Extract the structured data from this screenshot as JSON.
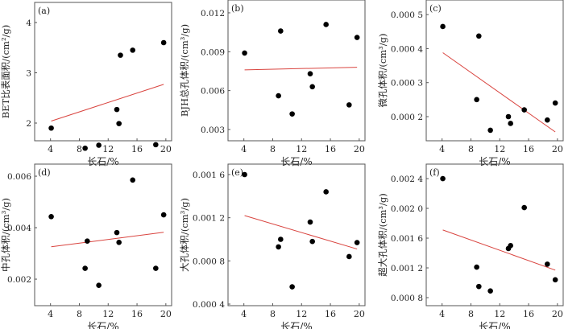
{
  "chart_data": [
    {
      "type": "scatter",
      "panel": "(a)",
      "xlabel": "长石/%",
      "ylabel": "BET比表面积/(cm²/g)",
      "xlim": [
        1.8,
        20.8
      ],
      "ylim": [
        1.648,
        4.4
      ],
      "xticks": [
        4,
        8,
        12,
        16,
        20
      ],
      "xtick_labels": [
        "4",
        "8",
        "12",
        "16",
        "20"
      ],
      "yticks": [
        2,
        3,
        4
      ],
      "ytick_labels": [
        "2",
        "3",
        "4"
      ],
      "x": [
        4.1,
        8.8,
        10.7,
        13.2,
        13.5,
        13.7,
        15.4,
        18.6,
        19.7
      ],
      "y": [
        1.9,
        1.5,
        1.56,
        2.27,
        1.99,
        3.35,
        3.45,
        1.57,
        3.6
      ],
      "fit": {
        "x": [
          4.1,
          19.7
        ],
        "y": [
          2.04,
          2.77
        ]
      }
    },
    {
      "type": "scatter",
      "panel": "(b)",
      "xlabel": "长石/%",
      "ylabel": "BJH总孔体积/(cm³/g)",
      "xlim": [
        1.8,
        20.8
      ],
      "ylim": [
        0.00213,
        0.01299
      ],
      "xticks": [
        4,
        8,
        12,
        16,
        20
      ],
      "xtick_labels": [
        "4",
        "8",
        "12",
        "16",
        "20"
      ],
      "yticks": [
        0.003,
        0.006,
        0.009,
        0.012
      ],
      "ytick_labels": [
        "0.003",
        "0.006",
        "0.009",
        "0.012"
      ],
      "x": [
        4.1,
        8.8,
        9.1,
        10.7,
        13.2,
        13.5,
        15.4,
        18.6,
        19.7
      ],
      "y": [
        0.0089,
        0.0056,
        0.0106,
        0.0042,
        0.0073,
        0.0063,
        0.0111,
        0.0049,
        0.0101
      ],
      "fit": {
        "x": [
          4.1,
          19.7
        ],
        "y": [
          0.0076,
          0.0078
        ]
      }
    },
    {
      "type": "scatter",
      "panel": "(c)",
      "xlabel": "长石/%",
      "ylabel": "微孔体积/(cm³/g)",
      "xlim": [
        1.8,
        20.8
      ],
      "ylim": [
        0.000129,
        0.000543
      ],
      "xticks": [
        4,
        8,
        12,
        16,
        20
      ],
      "xtick_labels": [
        "4",
        "8",
        "12",
        "16",
        "20"
      ],
      "yticks": [
        0.0002,
        0.0003,
        0.0004,
        0.0005
      ],
      "ytick_labels": [
        "0.000 2",
        "0.000 3",
        "0.000 4",
        "0.000 5"
      ],
      "x": [
        4.1,
        8.8,
        9.1,
        10.7,
        13.2,
        13.5,
        15.4,
        18.6,
        19.7
      ],
      "y": [
        0.000465,
        0.00025,
        0.000437,
        0.00016,
        0.0002,
        0.00018,
        0.00022,
        0.00019,
        0.00024
      ],
      "fit": {
        "x": [
          4.1,
          19.7
        ],
        "y": [
          0.000388,
          0.000155
        ]
      }
    },
    {
      "type": "scatter",
      "panel": "(d)",
      "xlabel": "长石/%",
      "ylabel": "中孔体积/(cm³/g)",
      "xlim": [
        1.8,
        20.8
      ],
      "ylim": [
        0.00097,
        0.00647
      ],
      "xticks": [
        4,
        8,
        12,
        16,
        20
      ],
      "xtick_labels": [
        "4",
        "8",
        "12",
        "16",
        "20"
      ],
      "yticks": [
        0.002,
        0.004,
        0.006
      ],
      "ytick_labels": [
        "0.002",
        "0.004",
        "0.006"
      ],
      "x": [
        4.1,
        8.8,
        9.1,
        10.7,
        13.2,
        13.5,
        15.4,
        18.6,
        19.7
      ],
      "y": [
        0.00443,
        0.00242,
        0.00348,
        0.00176,
        0.00381,
        0.00343,
        0.00585,
        0.00242,
        0.0045
      ],
      "fit": {
        "x": [
          4.1,
          19.7
        ],
        "y": [
          0.00326,
          0.00382
        ]
      }
    },
    {
      "type": "scatter",
      "panel": "(e)",
      "xlabel": "长石/%",
      "ylabel": "大孔体积/(cm³/g)",
      "xlim": [
        1.8,
        20.8
      ],
      "ylim": [
        0.000385,
        0.001697
      ],
      "xticks": [
        4,
        8,
        12,
        16,
        20
      ],
      "xtick_labels": [
        "4",
        "8",
        "12",
        "16",
        "20"
      ],
      "yticks": [
        0.0004,
        0.0008,
        0.0012,
        0.0016
      ],
      "ytick_labels": [
        "0.000 4",
        "0.000 8",
        "0.001 2",
        "0.001 6"
      ],
      "x": [
        4.1,
        8.8,
        9.1,
        10.7,
        13.2,
        13.5,
        15.4,
        18.6,
        19.7
      ],
      "y": [
        0.0016,
        0.00093,
        0.001,
        0.00056,
        0.00116,
        0.00098,
        0.00144,
        0.00084,
        0.00097
      ],
      "fit": {
        "x": [
          4.1,
          19.7
        ],
        "y": [
          0.00122,
          0.00091
        ]
      }
    },
    {
      "type": "scatter",
      "panel": "(f)",
      "xlabel": "长石/%",
      "ylabel": "超大孔体积/(cm³/g)",
      "xlim": [
        1.8,
        20.8
      ],
      "ylim": [
        0.000692,
        0.002595
      ],
      "xticks": [
        4,
        8,
        12,
        16,
        20
      ],
      "xtick_labels": [
        "4",
        "8",
        "12",
        "16",
        "20"
      ],
      "yticks": [
        0.0008,
        0.0012,
        0.0016,
        0.002,
        0.0024
      ],
      "ytick_labels": [
        "0.000 8",
        "0.001 2",
        "0.001 6",
        "0.002 0",
        "0.002 4"
      ],
      "x": [
        4.1,
        8.8,
        9.1,
        10.7,
        13.2,
        13.5,
        15.4,
        18.6,
        19.7
      ],
      "y": [
        0.0024,
        0.00121,
        0.00095,
        0.00089,
        0.00146,
        0.0015,
        0.00201,
        0.00125,
        0.00104
      ],
      "fit": {
        "x": [
          4.1,
          19.7
        ],
        "y": [
          0.00171,
          0.00117
        ]
      }
    }
  ],
  "colors": {
    "points": "#000000",
    "fit": "#d9443f",
    "axes": "#555555"
  }
}
